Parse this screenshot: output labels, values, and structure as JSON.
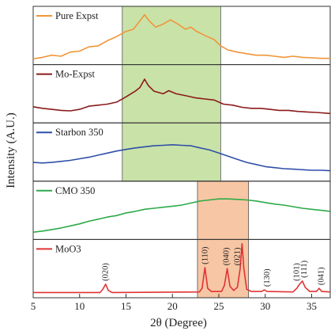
{
  "chart_data": {
    "type": "line",
    "xlabel": "2θ (Degree)",
    "ylabel": "Intensity (A.U.)",
    "xlim": [
      5,
      37
    ],
    "xticks": [
      5,
      10,
      15,
      20,
      25,
      30,
      35
    ],
    "highlight_bands": [
      {
        "x0": 14.6,
        "x1": 25.2,
        "color": "#c9e2a8",
        "panels": [
          0,
          1,
          2
        ]
      },
      {
        "x0": 22.7,
        "x1": 28.2,
        "color": "#f7c6a4",
        "panels": [
          3,
          4
        ]
      }
    ],
    "series": [
      {
        "name": "Pure Expst",
        "color": "#f0953a",
        "points": [
          [
            5,
            0.05
          ],
          [
            6,
            0.08
          ],
          [
            7,
            0.12
          ],
          [
            8,
            0.1
          ],
          [
            9,
            0.18
          ],
          [
            10,
            0.2
          ],
          [
            11,
            0.28
          ],
          [
            12,
            0.3
          ],
          [
            13,
            0.4
          ],
          [
            14,
            0.48
          ],
          [
            15,
            0.58
          ],
          [
            15.8,
            0.62
          ],
          [
            16.5,
            0.78
          ],
          [
            17,
            0.9
          ],
          [
            17.5,
            0.78
          ],
          [
            18.2,
            0.66
          ],
          [
            19,
            0.72
          ],
          [
            19.8,
            0.8
          ],
          [
            20.6,
            0.72
          ],
          [
            21.4,
            0.62
          ],
          [
            22,
            0.66
          ],
          [
            22.6,
            0.58
          ],
          [
            23.5,
            0.5
          ],
          [
            24.5,
            0.42
          ],
          [
            25.2,
            0.3
          ],
          [
            26,
            0.22
          ],
          [
            27,
            0.18
          ],
          [
            28,
            0.15
          ],
          [
            29,
            0.12
          ],
          [
            30,
            0.12
          ],
          [
            31,
            0.1
          ],
          [
            32,
            0.08
          ],
          [
            33,
            0.1
          ],
          [
            34,
            0.08
          ],
          [
            35,
            0.07
          ],
          [
            36,
            0.06
          ],
          [
            37,
            0.06
          ]
        ]
      },
      {
        "name": "Mo-Expst",
        "color": "#8b1a1a",
        "points": [
          [
            5,
            0.25
          ],
          [
            6,
            0.22
          ],
          [
            7,
            0.2
          ],
          [
            8,
            0.18
          ],
          [
            9,
            0.17
          ],
          [
            10,
            0.2
          ],
          [
            11,
            0.26
          ],
          [
            12,
            0.28
          ],
          [
            13,
            0.3
          ],
          [
            14,
            0.34
          ],
          [
            15,
            0.44
          ],
          [
            16,
            0.55
          ],
          [
            16.5,
            0.62
          ],
          [
            17,
            0.78
          ],
          [
            17.4,
            0.66
          ],
          [
            18,
            0.55
          ],
          [
            19,
            0.5
          ],
          [
            19.6,
            0.56
          ],
          [
            20.4,
            0.5
          ],
          [
            21.5,
            0.46
          ],
          [
            22.5,
            0.42
          ],
          [
            23.5,
            0.4
          ],
          [
            24.5,
            0.38
          ],
          [
            25.5,
            0.3
          ],
          [
            26.5,
            0.28
          ],
          [
            27.5,
            0.24
          ],
          [
            28.5,
            0.22
          ],
          [
            29.5,
            0.22
          ],
          [
            30.5,
            0.2
          ],
          [
            31.5,
            0.18
          ],
          [
            32.5,
            0.18
          ],
          [
            33.5,
            0.16
          ],
          [
            34.5,
            0.15
          ],
          [
            35.5,
            0.14
          ],
          [
            37,
            0.12
          ]
        ]
      },
      {
        "name": "Starbon 350",
        "color": "#2f4fa8",
        "points": [
          [
            5,
            0.3
          ],
          [
            6,
            0.29
          ],
          [
            7,
            0.3
          ],
          [
            8,
            0.32
          ],
          [
            9,
            0.34
          ],
          [
            10,
            0.37
          ],
          [
            11,
            0.4
          ],
          [
            12,
            0.44
          ],
          [
            13,
            0.48
          ],
          [
            14,
            0.52
          ],
          [
            15,
            0.55
          ],
          [
            16,
            0.58
          ],
          [
            17,
            0.6
          ],
          [
            18,
            0.62
          ],
          [
            19,
            0.63
          ],
          [
            20,
            0.64
          ],
          [
            21,
            0.63
          ],
          [
            22,
            0.62
          ],
          [
            23,
            0.58
          ],
          [
            24,
            0.54
          ],
          [
            25,
            0.48
          ],
          [
            26,
            0.42
          ],
          [
            27,
            0.36
          ],
          [
            28,
            0.3
          ],
          [
            29,
            0.26
          ],
          [
            30,
            0.22
          ],
          [
            31,
            0.2
          ],
          [
            32,
            0.18
          ],
          [
            33,
            0.17
          ],
          [
            34,
            0.16
          ],
          [
            35,
            0.15
          ],
          [
            36,
            0.15
          ],
          [
            37,
            0.14
          ]
        ]
      },
      {
        "name": "CMO 350",
        "color": "#2eaa4a",
        "points": [
          [
            5,
            0.08
          ],
          [
            6,
            0.1
          ],
          [
            7,
            0.13
          ],
          [
            8,
            0.16
          ],
          [
            9,
            0.2
          ],
          [
            10,
            0.24
          ],
          [
            11,
            0.29
          ],
          [
            12,
            0.33
          ],
          [
            13,
            0.37
          ],
          [
            14,
            0.4
          ],
          [
            15,
            0.45
          ],
          [
            16,
            0.48
          ],
          [
            17,
            0.52
          ],
          [
            18,
            0.54
          ],
          [
            19,
            0.56
          ],
          [
            20,
            0.58
          ],
          [
            21,
            0.6
          ],
          [
            22,
            0.64
          ],
          [
            23,
            0.68
          ],
          [
            24,
            0.7
          ],
          [
            25,
            0.72
          ],
          [
            26,
            0.72
          ],
          [
            27,
            0.71
          ],
          [
            28,
            0.7
          ],
          [
            29,
            0.68
          ],
          [
            30,
            0.65
          ],
          [
            31,
            0.62
          ],
          [
            32,
            0.6
          ],
          [
            33,
            0.57
          ],
          [
            34,
            0.54
          ],
          [
            35,
            0.52
          ],
          [
            36,
            0.5
          ],
          [
            37,
            0.48
          ]
        ]
      },
      {
        "name": "MoO3",
        "color": "#e03333",
        "points": [
          [
            5,
            0.04
          ],
          [
            12.2,
            0.04
          ],
          [
            12.5,
            0.1
          ],
          [
            12.8,
            0.2
          ],
          [
            13.1,
            0.08
          ],
          [
            13.5,
            0.04
          ],
          [
            22.9,
            0.05
          ],
          [
            23.2,
            0.12
          ],
          [
            23.5,
            0.52
          ],
          [
            23.8,
            0.12
          ],
          [
            24.2,
            0.06
          ],
          [
            25.3,
            0.06
          ],
          [
            25.6,
            0.18
          ],
          [
            25.9,
            0.5
          ],
          [
            26.2,
            0.16
          ],
          [
            26.6,
            0.08
          ],
          [
            27,
            0.14
          ],
          [
            27.3,
            0.5
          ],
          [
            27.5,
            0.98
          ],
          [
            27.7,
            0.5
          ],
          [
            28,
            0.1
          ],
          [
            28.5,
            0.06
          ],
          [
            29.6,
            0.06
          ],
          [
            29.9,
            0.09
          ],
          [
            30.2,
            0.06
          ],
          [
            33,
            0.05
          ],
          [
            33.4,
            0.12
          ],
          [
            33.7,
            0.2
          ],
          [
            34,
            0.26
          ],
          [
            34.3,
            0.14
          ],
          [
            34.8,
            0.06
          ],
          [
            35.5,
            0.06
          ],
          [
            35.8,
            0.12
          ],
          [
            36.1,
            0.06
          ],
          [
            37,
            0.05
          ]
        ]
      }
    ],
    "peak_labels": [
      {
        "x": 12.8,
        "text": "(020)"
      },
      {
        "x": 23.5,
        "text": "(110)"
      },
      {
        "x": 25.8,
        "text": "(040)"
      },
      {
        "x": 27.0,
        "text": "(021)"
      },
      {
        "x": 30.2,
        "text": "(130)"
      },
      {
        "x": 33.4,
        "text": "(101)"
      },
      {
        "x": 34.2,
        "text": "(111)"
      },
      {
        "x": 36.0,
        "text": "(041)"
      }
    ]
  }
}
